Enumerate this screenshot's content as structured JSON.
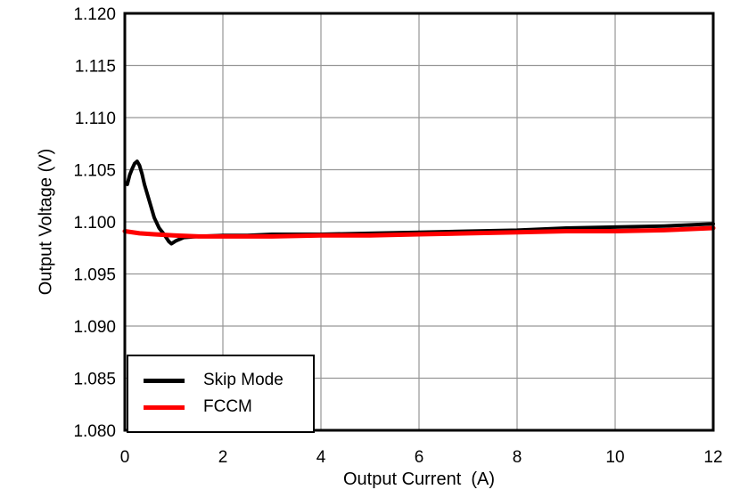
{
  "colors": {
    "background": "#ffffff",
    "plot_background": "#ffffff",
    "grid": "#969696",
    "axis": "#000000",
    "legend_border": "#000000",
    "series_skip_mode": "#000000",
    "series_fccm": "#ff0000"
  },
  "chart_data": {
    "type": "line",
    "title": "",
    "xlabel": "Output Current  (A)",
    "ylabel": "Output Voltage (V)",
    "xlim": [
      0,
      12
    ],
    "ylim": [
      1.08,
      1.12
    ],
    "x_ticks": [
      "0",
      "2",
      "4",
      "6",
      "8",
      "10",
      "12"
    ],
    "y_ticks": [
      "1.080",
      "1.085",
      "1.090",
      "1.095",
      "1.100",
      "1.105",
      "1.110",
      "1.115",
      "1.120"
    ],
    "grid": true,
    "legend_position": "lower-left",
    "series": [
      {
        "name": "Skip Mode",
        "color": "#000000",
        "line_width": 4,
        "points": [
          [
            0.05,
            1.1036
          ],
          [
            0.1,
            1.1045
          ],
          [
            0.15,
            1.1051
          ],
          [
            0.2,
            1.1056
          ],
          [
            0.25,
            1.1058
          ],
          [
            0.3,
            1.1054
          ],
          [
            0.35,
            1.1046
          ],
          [
            0.4,
            1.1036
          ],
          [
            0.5,
            1.102
          ],
          [
            0.6,
            1.1004
          ],
          [
            0.7,
            1.0994
          ],
          [
            0.8,
            1.0988
          ],
          [
            0.9,
            1.0981
          ],
          [
            0.95,
            1.0979
          ],
          [
            1.05,
            1.0982
          ],
          [
            1.2,
            1.0985
          ],
          [
            1.5,
            1.0986
          ],
          [
            2,
            1.0987
          ],
          [
            2.5,
            1.0987
          ],
          [
            3,
            1.0988
          ],
          [
            4,
            1.0988
          ],
          [
            5,
            1.0989
          ],
          [
            6,
            1.099
          ],
          [
            7,
            1.0991
          ],
          [
            8,
            1.0992
          ],
          [
            9,
            1.0994
          ],
          [
            10,
            1.0995
          ],
          [
            11,
            1.0996
          ],
          [
            12,
            1.0998
          ]
        ]
      },
      {
        "name": "FCCM",
        "color": "#ff0000",
        "line_width": 5,
        "points": [
          [
            0,
            1.0991
          ],
          [
            0.3,
            1.0989
          ],
          [
            0.6,
            1.0988
          ],
          [
            1,
            1.0987
          ],
          [
            1.5,
            1.0986
          ],
          [
            2,
            1.0986
          ],
          [
            3,
            1.0986
          ],
          [
            4,
            1.0987
          ],
          [
            5,
            1.0987
          ],
          [
            6,
            1.0988
          ],
          [
            7,
            1.0989
          ],
          [
            8,
            1.099
          ],
          [
            9,
            1.0991
          ],
          [
            10,
            1.0991
          ],
          [
            11,
            1.0992
          ],
          [
            12,
            1.0994
          ]
        ]
      }
    ]
  }
}
